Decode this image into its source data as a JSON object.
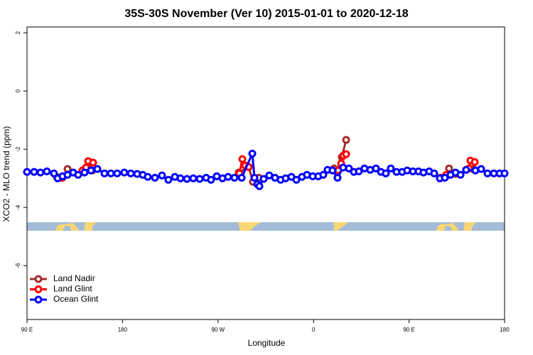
{
  "chart_data": {
    "type": "line",
    "title": "35S-30S November (Ver 10)   2015-01-01 to 2020-12-18",
    "x_label": "Longitude",
    "y_label": "XCO2 - MLO trend (ppm)",
    "xlim": [
      90,
      540
    ],
    "ylim": [
      -7.85,
      2.2
    ],
    "xticks": [
      {
        "value": 90,
        "label": "90 E"
      },
      {
        "value": 180,
        "label": "180"
      },
      {
        "value": 270,
        "label": "90 W"
      },
      {
        "value": 360,
        "label": "0"
      },
      {
        "value": 450,
        "label": "90 E"
      },
      {
        "value": 540,
        "label": "180"
      }
    ],
    "yticks": [
      2,
      0,
      -2,
      -4,
      -6
    ],
    "legend": "bottom-left",
    "series": [
      {
        "name": "Land Nadir",
        "color": "#a52a2a",
        "x": [
          118.1,
          123.5,
          128.2,
          null,
          144.9,
          148.9,
          151.6,
          null,
          289.5,
          298.9,
          302.9,
          308.3,
          null,
          379.3,
          381.9,
          386.6,
          390.7,
          null,
          484.4,
          487.7,
          493.8,
          null,
          510.5
        ],
        "values": [
          -2.95,
          -2.98,
          -2.68,
          null,
          -2.68,
          -2.44,
          -2.73,
          null,
          -2.8,
          -2.61,
          -3.12,
          -2.98,
          null,
          -2.66,
          -2.76,
          -2.27,
          -1.68,
          null,
          -2.95,
          -2.66,
          -2.85,
          null,
          -2.68
        ]
      },
      {
        "name": "Land Glint",
        "color": "#ff0000",
        "x": [
          122.1,
          null,
          142.2,
          145.6,
          147.6,
          152.3,
          null,
          290.2,
          292.9,
          295.6,
          298.9,
          null,
          381.3,
          383.3,
          386,
          388,
          390.7,
          null,
          479.7,
          485,
          null,
          503.8,
          506.5,
          507.8,
          511.9
        ],
        "values": [
          -2.98,
          null,
          -2.73,
          -2.63,
          -2.41,
          -2.46,
          null,
          -2.83,
          -2.34,
          -2.56,
          -2.61,
          null,
          -2.76,
          -2.73,
          -2.49,
          -2.22,
          -2.17,
          null,
          -2.98,
          -2.88,
          null,
          -2.71,
          -2.66,
          -2.39,
          -2.44
        ]
      },
      {
        "name": "Ocean Glint",
        "color": "#0000ff",
        "x": [
          90,
          96.7,
          102.7,
          108.7,
          115.4,
          118.8,
          123.5,
          128.2,
          133.5,
          138.2,
          144.2,
          150.3,
          156.3,
          163,
          169,
          175,
          181.7,
          187.8,
          193.8,
          199.1,
          203.8,
          210.5,
          217.2,
          223.2,
          229.3,
          234.6,
          240.7,
          246.7,
          252.7,
          258.8,
          263.4,
          268.8,
          274.2,
          279.5,
          285.5,
          292.3,
          302.3,
          304.3,
          307,
          309,
          313,
          318.3,
          323.7,
          329,
          333.7,
          339.1,
          343.8,
          349.1,
          353.8,
          359.2,
          364.5,
          369.2,
          373.2,
          377.9,
          382.6,
          387.9,
          393.3,
          398,
          402.7,
          408,
          413.4,
          418.8,
          423.5,
          428.1,
          432.8,
          438.2,
          443.5,
          448.2,
          453.6,
          458.9,
          463.6,
          469,
          473.7,
          479,
          483.7,
          489.1,
          493.8,
          498.5,
          503.8,
          512.5,
          517.9,
          523.9,
          529.9,
          535.3,
          540
        ],
        "values": [
          -2.78,
          -2.78,
          -2.8,
          -2.76,
          -2.83,
          -3.0,
          -2.93,
          -2.88,
          -2.8,
          -2.88,
          -2.8,
          -2.73,
          -2.68,
          -2.83,
          -2.83,
          -2.83,
          -2.8,
          -2.83,
          -2.85,
          -2.88,
          -2.95,
          -2.98,
          -2.9,
          -3.05,
          -2.95,
          -3.0,
          -3.02,
          -3.0,
          -3.02,
          -2.98,
          -3.05,
          -2.93,
          -3.0,
          -2.95,
          -2.98,
          -2.98,
          -2.15,
          -2.98,
          -3.2,
          -3.27,
          -3.02,
          -2.9,
          -2.98,
          -3.05,
          -3.0,
          -2.95,
          -3.05,
          -2.95,
          -2.88,
          -2.93,
          -2.93,
          -2.88,
          -2.71,
          -2.73,
          -2.98,
          -2.63,
          -2.66,
          -2.78,
          -2.76,
          -2.66,
          -2.71,
          -2.66,
          -2.78,
          -2.83,
          -2.66,
          -2.78,
          -2.78,
          -2.73,
          -2.76,
          -2.76,
          -2.8,
          -2.76,
          -2.83,
          -3.0,
          -2.98,
          -2.88,
          -2.8,
          -2.88,
          -2.71,
          -2.73,
          -2.68,
          -2.83,
          -2.83,
          -2.83,
          -2.83
        ]
      }
    ]
  }
}
